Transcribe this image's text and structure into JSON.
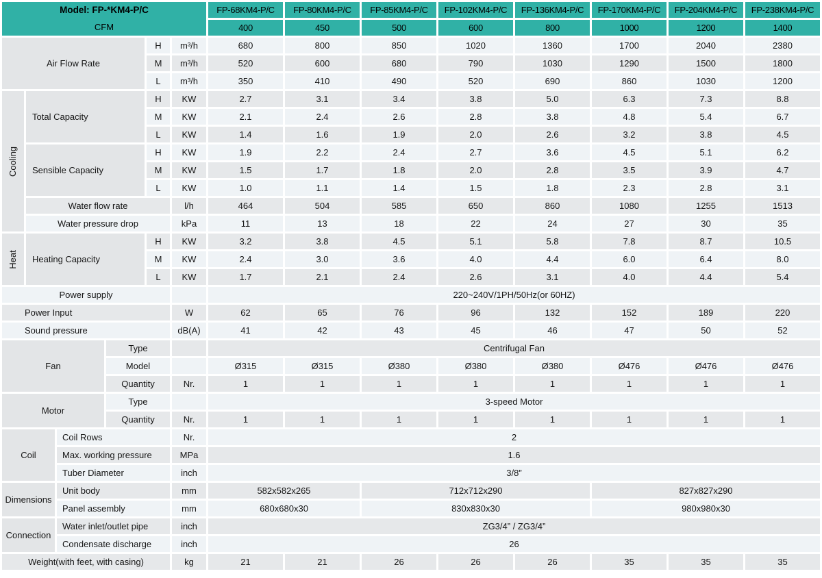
{
  "colors": {
    "header_teal": "#30b1a6",
    "row_light": "#eff3f6",
    "row_dark": "#e6e8ea",
    "label_gray": "#e3e5e7"
  },
  "grid": {
    "rows": [
      {
        "n": "header",
        "cells": [
          {
            "t": "Model: FP-*KM4-P/C",
            "t2": "CFM",
            "k": "th2",
            "cs": 6,
            "rs": 2,
            "n": "model-header"
          },
          {
            "t": "FP-68KM4-P/C",
            "k": "th",
            "n": "col-header-fp-68"
          },
          {
            "t": "FP-80KM4-P/C",
            "k": "th",
            "n": "col-header-fp-80"
          },
          {
            "t": "FP-85KM4-P/C",
            "k": "th",
            "n": "col-header-fp-85"
          },
          {
            "t": "FP-102KM4-P/C",
            "k": "th",
            "n": "col-header-fp-102"
          },
          {
            "t": "FP-136KM4-P/C",
            "k": "th",
            "n": "col-header-fp-136"
          },
          {
            "t": "FP-170KM4-P/C",
            "k": "th",
            "n": "col-header-fp-170"
          },
          {
            "t": "FP-204KM4-P/C",
            "k": "th",
            "n": "col-header-fp-204"
          },
          {
            "t": "FP-238KM4-P/C",
            "k": "th",
            "n": "col-header-fp-238"
          }
        ]
      },
      {
        "n": "cfm",
        "cells": [
          {
            "t": "400",
            "k": "th"
          },
          {
            "t": "450",
            "k": "th"
          },
          {
            "t": "500",
            "k": "th"
          },
          {
            "t": "600",
            "k": "th"
          },
          {
            "t": "800",
            "k": "th"
          },
          {
            "t": "1000",
            "k": "th"
          },
          {
            "t": "1200",
            "k": "th"
          },
          {
            "t": "1400",
            "k": "th"
          }
        ]
      },
      {
        "n": "airflow-h",
        "sh": "a",
        "cells": [
          {
            "t": "Air Flow Rate",
            "k": "gl",
            "cs": 4,
            "rs": 3,
            "n": "label-air-flow-rate"
          },
          {
            "t": "H"
          },
          {
            "t": "m³/h"
          },
          {
            "t": "680"
          },
          {
            "t": "800"
          },
          {
            "t": "850"
          },
          {
            "t": "1020"
          },
          {
            "t": "1360"
          },
          {
            "t": "1700"
          },
          {
            "t": "2040"
          },
          {
            "t": "2380"
          }
        ]
      },
      {
        "n": "airflow-m",
        "sh": "b",
        "cells": [
          {
            "t": "M"
          },
          {
            "t": "m³/h"
          },
          {
            "t": "520"
          },
          {
            "t": "600"
          },
          {
            "t": "680"
          },
          {
            "t": "790"
          },
          {
            "t": "1030"
          },
          {
            "t": "1290"
          },
          {
            "t": "1500"
          },
          {
            "t": "1800"
          }
        ]
      },
      {
        "n": "airflow-l",
        "sh": "a",
        "cells": [
          {
            "t": "L"
          },
          {
            "t": "m³/h"
          },
          {
            "t": "350"
          },
          {
            "t": "410"
          },
          {
            "t": "490"
          },
          {
            "t": "520"
          },
          {
            "t": "690"
          },
          {
            "t": "860"
          },
          {
            "t": "1030"
          },
          {
            "t": "1200"
          }
        ]
      },
      {
        "n": "cooling-total-h",
        "sh": "b",
        "cells": [
          {
            "t": "Cooling",
            "k": "vl",
            "rs": 8,
            "n": "label-cooling"
          },
          {
            "t": "Total Capacity",
            "k": "gll",
            "cs": 3,
            "rs": 3,
            "n": "label-total-capacity"
          },
          {
            "t": "H"
          },
          {
            "t": "KW"
          },
          {
            "t": "2.7"
          },
          {
            "t": "3.1"
          },
          {
            "t": "3.4"
          },
          {
            "t": "3.8"
          },
          {
            "t": "5.0"
          },
          {
            "t": "6.3"
          },
          {
            "t": "7.3"
          },
          {
            "t": "8.8"
          }
        ]
      },
      {
        "n": "cooling-total-m",
        "sh": "a",
        "cells": [
          {
            "t": "M"
          },
          {
            "t": "KW"
          },
          {
            "t": "2.1"
          },
          {
            "t": "2.4"
          },
          {
            "t": "2.6"
          },
          {
            "t": "2.8"
          },
          {
            "t": "3.8"
          },
          {
            "t": "4.8"
          },
          {
            "t": "5.4"
          },
          {
            "t": "6.7"
          }
        ]
      },
      {
        "n": "cooling-total-l",
        "sh": "b",
        "cells": [
          {
            "t": "L"
          },
          {
            "t": "KW"
          },
          {
            "t": "1.4"
          },
          {
            "t": "1.6"
          },
          {
            "t": "1.9"
          },
          {
            "t": "2.0"
          },
          {
            "t": "2.6"
          },
          {
            "t": "3.2"
          },
          {
            "t": "3.8"
          },
          {
            "t": "4.5"
          }
        ]
      },
      {
        "n": "cooling-sensible-h",
        "sh": "a",
        "cells": [
          {
            "t": "Sensible Capacity",
            "k": "gll",
            "cs": 3,
            "rs": 3,
            "n": "label-sensible-capacity"
          },
          {
            "t": "H"
          },
          {
            "t": "KW"
          },
          {
            "t": "1.9"
          },
          {
            "t": "2.2"
          },
          {
            "t": "2.4"
          },
          {
            "t": "2.7"
          },
          {
            "t": "3.6"
          },
          {
            "t": "4.5"
          },
          {
            "t": "5.1"
          },
          {
            "t": "6.2"
          }
        ]
      },
      {
        "n": "cooling-sensible-m",
        "sh": "b",
        "cells": [
          {
            "t": "M"
          },
          {
            "t": "KW"
          },
          {
            "t": "1.5"
          },
          {
            "t": "1.7"
          },
          {
            "t": "1.8"
          },
          {
            "t": "2.0"
          },
          {
            "t": "2.8"
          },
          {
            "t": "3.5"
          },
          {
            "t": "3.9"
          },
          {
            "t": "4.7"
          }
        ]
      },
      {
        "n": "cooling-sensible-l",
        "sh": "a",
        "cells": [
          {
            "t": "L"
          },
          {
            "t": "KW"
          },
          {
            "t": "1.0"
          },
          {
            "t": "1.1"
          },
          {
            "t": "1.4"
          },
          {
            "t": "1.5"
          },
          {
            "t": "1.8"
          },
          {
            "t": "2.3"
          },
          {
            "t": "2.8"
          },
          {
            "t": "3.1"
          }
        ]
      },
      {
        "n": "water-flow-rate",
        "sh": "b",
        "cells": [
          {
            "t": "Water flow rate",
            "cs": 4,
            "n": "label-water-flow-rate"
          },
          {
            "t": "l/h"
          },
          {
            "t": "464"
          },
          {
            "t": "504"
          },
          {
            "t": "585"
          },
          {
            "t": "650"
          },
          {
            "t": "860"
          },
          {
            "t": "1080"
          },
          {
            "t": "1255"
          },
          {
            "t": "1513"
          }
        ]
      },
      {
        "n": "water-pressure-drop",
        "sh": "a",
        "cells": [
          {
            "t": "Water pressure drop",
            "cs": 4,
            "n": "label-water-pressure-drop"
          },
          {
            "t": "kPa"
          },
          {
            "t": "11"
          },
          {
            "t": "13"
          },
          {
            "t": "18"
          },
          {
            "t": "22"
          },
          {
            "t": "24"
          },
          {
            "t": "27"
          },
          {
            "t": "30"
          },
          {
            "t": "35"
          }
        ]
      },
      {
        "n": "heating-h",
        "sh": "b",
        "cells": [
          {
            "t": "Heat",
            "k": "vl",
            "rs": 3,
            "n": "label-heat"
          },
          {
            "t": "Heating Capacity",
            "k": "gll",
            "cs": 3,
            "rs": 3,
            "n": "label-heating-capacity"
          },
          {
            "t": "H"
          },
          {
            "t": "KW"
          },
          {
            "t": "3.2"
          },
          {
            "t": "3.8"
          },
          {
            "t": "4.5"
          },
          {
            "t": "5.1"
          },
          {
            "t": "5.8"
          },
          {
            "t": "7.8"
          },
          {
            "t": "8.7"
          },
          {
            "t": "10.5"
          }
        ]
      },
      {
        "n": "heating-m",
        "sh": "a",
        "cells": [
          {
            "t": "M"
          },
          {
            "t": "KW"
          },
          {
            "t": "2.4"
          },
          {
            "t": "3.0"
          },
          {
            "t": "3.6"
          },
          {
            "t": "4.0"
          },
          {
            "t": "4.4"
          },
          {
            "t": "6.0"
          },
          {
            "t": "6.4"
          },
          {
            "t": "8.0"
          }
        ]
      },
      {
        "n": "heating-l",
        "sh": "b",
        "cells": [
          {
            "t": "L"
          },
          {
            "t": "KW"
          },
          {
            "t": "1.7"
          },
          {
            "t": "2.1"
          },
          {
            "t": "2.4"
          },
          {
            "t": "2.6"
          },
          {
            "t": "3.1"
          },
          {
            "t": "4.0"
          },
          {
            "t": "4.4"
          },
          {
            "t": "5.4"
          }
        ]
      },
      {
        "n": "power-supply",
        "sh": "a",
        "cells": [
          {
            "t": "Power supply",
            "cs": 5,
            "n": "label-power-supply"
          },
          {
            "t": ""
          },
          {
            "t": "220~240V/1PH/50Hz(or 60HZ)",
            "cs": 8,
            "n": "power-supply-value"
          }
        ]
      },
      {
        "n": "power-input",
        "sh": "b",
        "cells": [
          {
            "t": "Power Input",
            "k": "clp",
            "cs": 5,
            "n": "label-power-input"
          },
          {
            "t": "W"
          },
          {
            "t": "62"
          },
          {
            "t": "65"
          },
          {
            "t": "76"
          },
          {
            "t": "96"
          },
          {
            "t": "132"
          },
          {
            "t": "152"
          },
          {
            "t": "189"
          },
          {
            "t": "220"
          }
        ]
      },
      {
        "n": "sound-pressure",
        "sh": "a",
        "cells": [
          {
            "t": "Sound pressure",
            "k": "clp",
            "cs": 5,
            "n": "label-sound-pressure"
          },
          {
            "t": "dB(A)"
          },
          {
            "t": "41"
          },
          {
            "t": "42"
          },
          {
            "t": "43"
          },
          {
            "t": "45"
          },
          {
            "t": "46"
          },
          {
            "t": "47"
          },
          {
            "t": "50"
          },
          {
            "t": "52"
          }
        ]
      },
      {
        "n": "fan-type",
        "sh": "b",
        "cells": [
          {
            "t": "Fan",
            "k": "gl",
            "cs": 3,
            "rs": 3,
            "n": "label-fan"
          },
          {
            "t": "Type",
            "cs": 2
          },
          {
            "t": ""
          },
          {
            "t": "Centrifugal Fan",
            "cs": 8,
            "n": "fan-type-value"
          }
        ]
      },
      {
        "n": "fan-model",
        "sh": "a",
        "cells": [
          {
            "t": "Model",
            "cs": 2
          },
          {
            "t": ""
          },
          {
            "t": "Ø315"
          },
          {
            "t": "Ø315"
          },
          {
            "t": "Ø380"
          },
          {
            "t": "Ø380"
          },
          {
            "t": "Ø380"
          },
          {
            "t": "Ø476"
          },
          {
            "t": "Ø476"
          },
          {
            "t": "Ø476"
          }
        ]
      },
      {
        "n": "fan-quantity",
        "sh": "b",
        "cells": [
          {
            "t": "Quantity",
            "cs": 2
          },
          {
            "t": "Nr."
          },
          {
            "t": "1"
          },
          {
            "t": "1"
          },
          {
            "t": "1"
          },
          {
            "t": "1"
          },
          {
            "t": "1"
          },
          {
            "t": "1"
          },
          {
            "t": "1"
          },
          {
            "t": "1"
          }
        ]
      },
      {
        "n": "motor-type",
        "sh": "a",
        "cells": [
          {
            "t": "Motor",
            "k": "gl",
            "cs": 3,
            "rs": 2,
            "n": "label-motor"
          },
          {
            "t": "Type",
            "cs": 2
          },
          {
            "t": ""
          },
          {
            "t": "3-speed Motor",
            "cs": 8,
            "n": "motor-type-value"
          }
        ]
      },
      {
        "n": "motor-quantity",
        "sh": "b",
        "cells": [
          {
            "t": "Quantity",
            "cs": 2
          },
          {
            "t": "Nr."
          },
          {
            "t": "1"
          },
          {
            "t": "1"
          },
          {
            "t": "1"
          },
          {
            "t": "1"
          },
          {
            "t": "1"
          },
          {
            "t": "1"
          },
          {
            "t": "1"
          },
          {
            "t": "1"
          }
        ]
      },
      {
        "n": "coil-rows",
        "sh": "a",
        "cells": [
          {
            "t": "Coil",
            "k": "gl",
            "cs": 2,
            "rs": 3,
            "n": "label-coil"
          },
          {
            "t": "Coil Rows",
            "k": "cl",
            "cs": 3
          },
          {
            "t": "Nr."
          },
          {
            "t": "2",
            "cs": 8,
            "n": "coil-rows-value"
          }
        ]
      },
      {
        "n": "coil-max-pressure",
        "sh": "b",
        "cells": [
          {
            "t": "Max. working pressure",
            "k": "cl",
            "cs": 3
          },
          {
            "t": "MPa"
          },
          {
            "t": "1.6",
            "cs": 8,
            "n": "max-working-pressure-value"
          }
        ]
      },
      {
        "n": "coil-tube-diameter",
        "sh": "a",
        "cells": [
          {
            "t": "Tuber Diameter",
            "k": "cl",
            "cs": 3
          },
          {
            "t": "inch"
          },
          {
            "t": "3/8”",
            "cs": 8,
            "n": "tuber-diameter-value"
          }
        ]
      },
      {
        "n": "dim-unit-body",
        "sh": "b",
        "cells": [
          {
            "t": "Dimensions",
            "k": "gl",
            "cs": 2,
            "rs": 2,
            "n": "label-dimensions"
          },
          {
            "t": "Unit body",
            "k": "cl",
            "cs": 3
          },
          {
            "t": "mm"
          },
          {
            "t": "582x582x265",
            "cs": 2
          },
          {
            "t": "712x712x290",
            "cs": 3
          },
          {
            "t": "827x827x290",
            "cs": 3
          }
        ]
      },
      {
        "n": "dim-panel-assembly",
        "sh": "a",
        "cells": [
          {
            "t": "Panel assembly",
            "k": "cl",
            "cs": 3
          },
          {
            "t": "mm"
          },
          {
            "t": "680x680x30",
            "cs": 2
          },
          {
            "t": "830x830x30",
            "cs": 3
          },
          {
            "t": "980x980x30",
            "cs": 3
          }
        ]
      },
      {
        "n": "conn-water-pipe",
        "sh": "b",
        "cells": [
          {
            "t": "Connection",
            "k": "gl",
            "cs": 2,
            "rs": 2,
            "n": "label-connection"
          },
          {
            "t": "Water inlet/outlet pipe",
            "k": "cl",
            "cs": 3
          },
          {
            "t": "inch"
          },
          {
            "t": "ZG3/4” / ZG3/4”",
            "cs": 8,
            "n": "water-pipe-value"
          }
        ]
      },
      {
        "n": "conn-condensate",
        "sh": "a",
        "cells": [
          {
            "t": "Condensate discharge",
            "k": "cl",
            "cs": 3
          },
          {
            "t": "inch"
          },
          {
            "t": "26",
            "cs": 8,
            "n": "condensate-discharge-value"
          }
        ]
      },
      {
        "n": "weight",
        "sh": "b",
        "cells": [
          {
            "t": "Weight(with feet, with casing)",
            "cs": 5,
            "n": "label-weight"
          },
          {
            "t": "kg"
          },
          {
            "t": "21"
          },
          {
            "t": "21"
          },
          {
            "t": "26"
          },
          {
            "t": "26"
          },
          {
            "t": "26"
          },
          {
            "t": "35"
          },
          {
            "t": "35"
          },
          {
            "t": "35"
          }
        ]
      }
    ]
  }
}
